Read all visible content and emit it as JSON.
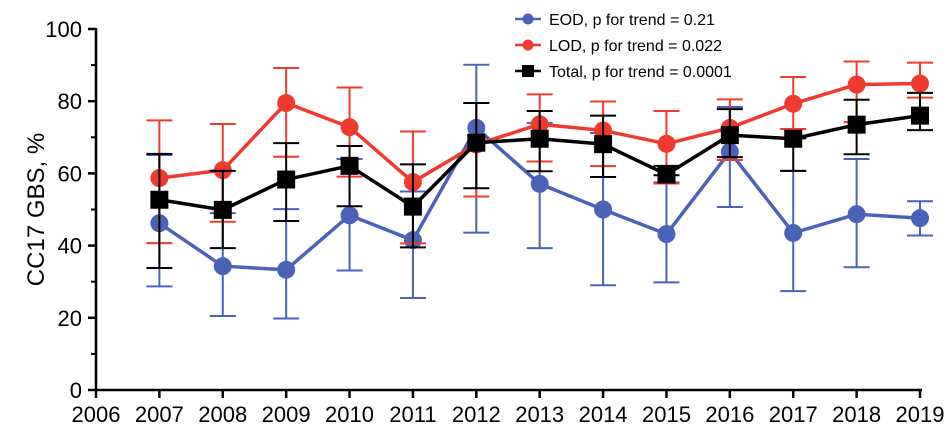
{
  "chart_data": {
    "type": "line",
    "title": "",
    "xlabel": "",
    "ylabel": "CC17 GBS, %",
    "xlim": [
      2006,
      2019
    ],
    "ylim": [
      0,
      100
    ],
    "x_ticks": [
      2006,
      2007,
      2008,
      2009,
      2010,
      2011,
      2012,
      2013,
      2014,
      2015,
      2016,
      2017,
      2018,
      2019
    ],
    "y_ticks": [
      0,
      20,
      40,
      60,
      80,
      100
    ],
    "grid": false,
    "legend_position": "top-right",
    "x": [
      2007,
      2008,
      2009,
      2010,
      2011,
      2012,
      2013,
      2014,
      2015,
      2016,
      2017,
      2018,
      2019
    ],
    "series": [
      {
        "name": "EOD, p for trend = 0.21",
        "color": "#4a63b8",
        "marker": "circle",
        "values": [
          46.2,
          34.3,
          33.3,
          48.4,
          41.5,
          72.6,
          57.1,
          50.0,
          43.2,
          66.0,
          43.5,
          48.7,
          47.6
        ],
        "err_low": [
          28.7,
          20.5,
          19.8,
          33.1,
          25.5,
          43.6,
          39.3,
          29.0,
          29.8,
          50.7,
          27.4,
          34.0,
          42.8
        ],
        "err_high": [
          65.1,
          49.0,
          50.1,
          64.0,
          55.0,
          90.1,
          74.0,
          71.2,
          57.5,
          78.4,
          60.7,
          64.0,
          52.3
        ]
      },
      {
        "name": "LOD, p for trend = 0.022",
        "color": "#f03a2e",
        "marker": "circle",
        "values": [
          58.7,
          60.9,
          79.5,
          72.8,
          57.6,
          68.0,
          73.6,
          71.9,
          68.2,
          72.6,
          79.3,
          84.6,
          84.9
        ],
        "err_low": [
          40.7,
          46.6,
          64.6,
          59.1,
          40.6,
          53.6,
          63.3,
          62.0,
          57.2,
          63.7,
          72.3,
          74.2,
          81.0
        ],
        "err_high": [
          74.7,
          73.7,
          89.2,
          83.8,
          71.6,
          79.5,
          81.9,
          79.9,
          77.3,
          80.5,
          86.7,
          91.0,
          90.7
        ]
      },
      {
        "name": "Total, p for trend = 0.0001",
        "color": "#000000",
        "marker": "square",
        "values": [
          52.7,
          49.9,
          58.3,
          62.1,
          50.8,
          68.5,
          69.6,
          68.1,
          59.7,
          70.6,
          69.6,
          73.5,
          76.0
        ],
        "err_low": [
          33.8,
          39.3,
          46.8,
          50.9,
          39.5,
          55.9,
          60.6,
          59.0,
          59.5,
          64.5,
          60.7,
          65.3,
          72.0
        ],
        "err_high": [
          65.4,
          60.7,
          68.4,
          67.6,
          62.5,
          79.5,
          77.3,
          76.0,
          62.1,
          77.8,
          69.7,
          80.4,
          82.3
        ]
      }
    ]
  }
}
